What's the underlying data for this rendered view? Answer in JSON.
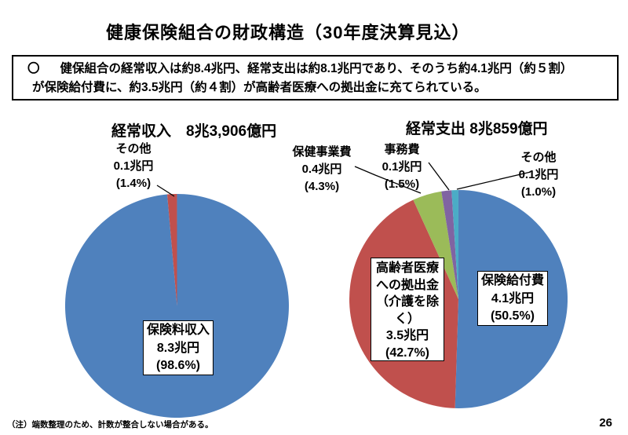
{
  "slide": {
    "title": "健康保険組合の財政構造（30年度決算見込）",
    "summary": {
      "bullet": "〇",
      "line1": "健保組合の経常収入は約8.4兆円、経常支出は約8.1兆円であり、そのうち約4.1兆円（約５割）",
      "line2": "が保険給付費に、約3.5兆円（約４割）が高齢者医療への拠出金に充てられている。"
    },
    "note": "（注）端数整理のため、計数が整合しない場合がある。",
    "page_number": "26"
  },
  "chart_data": [
    {
      "type": "pie",
      "title": "経常収入　8兆3,906億円",
      "total_label": "8兆3,906億円",
      "legend_position": "none",
      "categories": [
        "保険料収入",
        "その他"
      ],
      "values": [
        98.6,
        1.4
      ],
      "amounts": [
        "8.3兆円",
        "0.1兆円"
      ],
      "colors": [
        "#4f81bd",
        "#c0504d"
      ],
      "callouts": {
        "premium": [
          "保険料収入",
          "8.3兆円",
          "(98.6%)"
        ],
        "other": [
          "その他",
          "0.1兆円",
          "(1.4%)"
        ]
      }
    },
    {
      "type": "pie",
      "title": "経常支出 8兆859億円",
      "total_label": "8兆859億円",
      "legend_position": "none",
      "categories": [
        "保険給付費",
        "高齢者医療への拠出金（介護を除く）",
        "保健事業費",
        "事務費",
        "その他"
      ],
      "values": [
        50.5,
        42.7,
        4.3,
        1.5,
        1.0
      ],
      "amounts": [
        "4.1兆円",
        "3.5兆円",
        "0.4兆円",
        "0.1兆円",
        "0.1兆円"
      ],
      "colors": [
        "#4f81bd",
        "#c0504d",
        "#9bbb59",
        "#8064a2",
        "#4bacc6"
      ],
      "callouts": {
        "benefits": [
          "保険給付費",
          "4.1兆円",
          "(50.5%)"
        ],
        "elderly": [
          "高齢者医療",
          "への拠出金",
          "（介護を除",
          "く）",
          "3.5兆円",
          "(42.7%)"
        ],
        "health": [
          "保健事業費",
          "0.4兆円",
          "(4.3%)"
        ],
        "admin": [
          "事務費",
          "0.1兆円",
          "(1.5%)"
        ],
        "other": [
          "その他",
          "0.1兆円",
          "(1.0%)"
        ]
      }
    }
  ]
}
